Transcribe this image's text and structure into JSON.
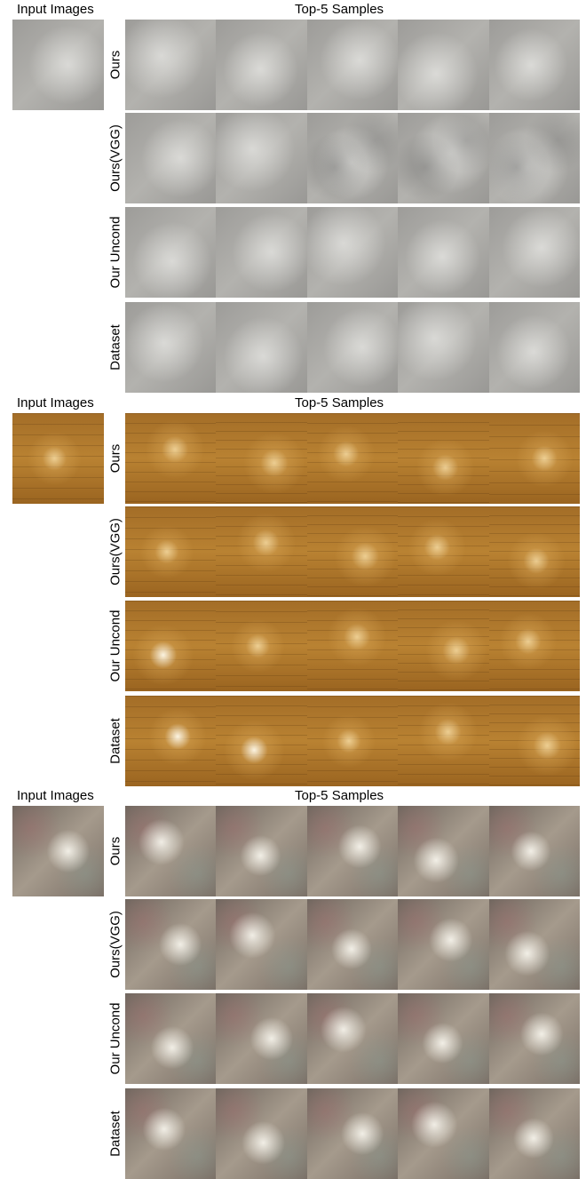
{
  "groups": [
    {
      "input_header": "Input Images",
      "samples_header": "Top-5 Samples",
      "rows": [
        "Ours",
        "Ours(VGG)",
        "Our Uncond",
        "Dataset"
      ]
    },
    {
      "input_header": "Input Images",
      "samples_header": "Top-5 Samples",
      "rows": [
        "Ours",
        "Ours(VGG)",
        "Our Uncond",
        "Dataset"
      ]
    },
    {
      "input_header": "Input Images",
      "samples_header": "Top-5 Samples",
      "rows": [
        "Ours",
        "Ours(VGG)",
        "Our Uncond",
        "Dataset"
      ]
    }
  ]
}
